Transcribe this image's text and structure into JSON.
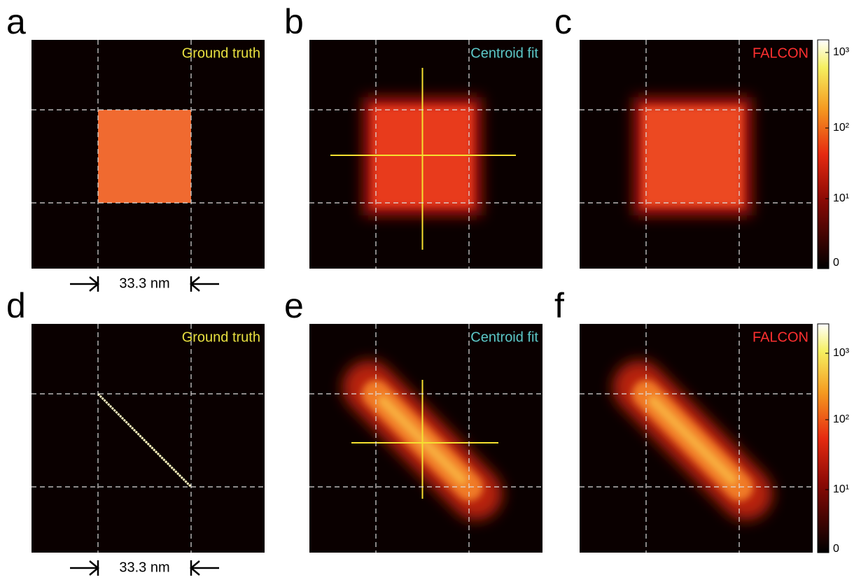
{
  "panels": [
    {
      "letter": "a",
      "title": "Ground truth",
      "scale_bar": "33.3 nm"
    },
    {
      "letter": "b",
      "title": "Centroid fit"
    },
    {
      "letter": "c",
      "title": "FALCON"
    },
    {
      "letter": "d",
      "title": "Ground truth",
      "scale_bar": "33.3 nm"
    },
    {
      "letter": "e",
      "title": "Centroid fit"
    },
    {
      "letter": "f",
      "title": "FALCON"
    }
  ],
  "colorbars": [
    {
      "ticks": [
        "10³",
        "10²",
        "10¹",
        "0"
      ]
    },
    {
      "ticks": [
        "10³",
        "10²",
        "10¹",
        "0"
      ]
    }
  ]
}
